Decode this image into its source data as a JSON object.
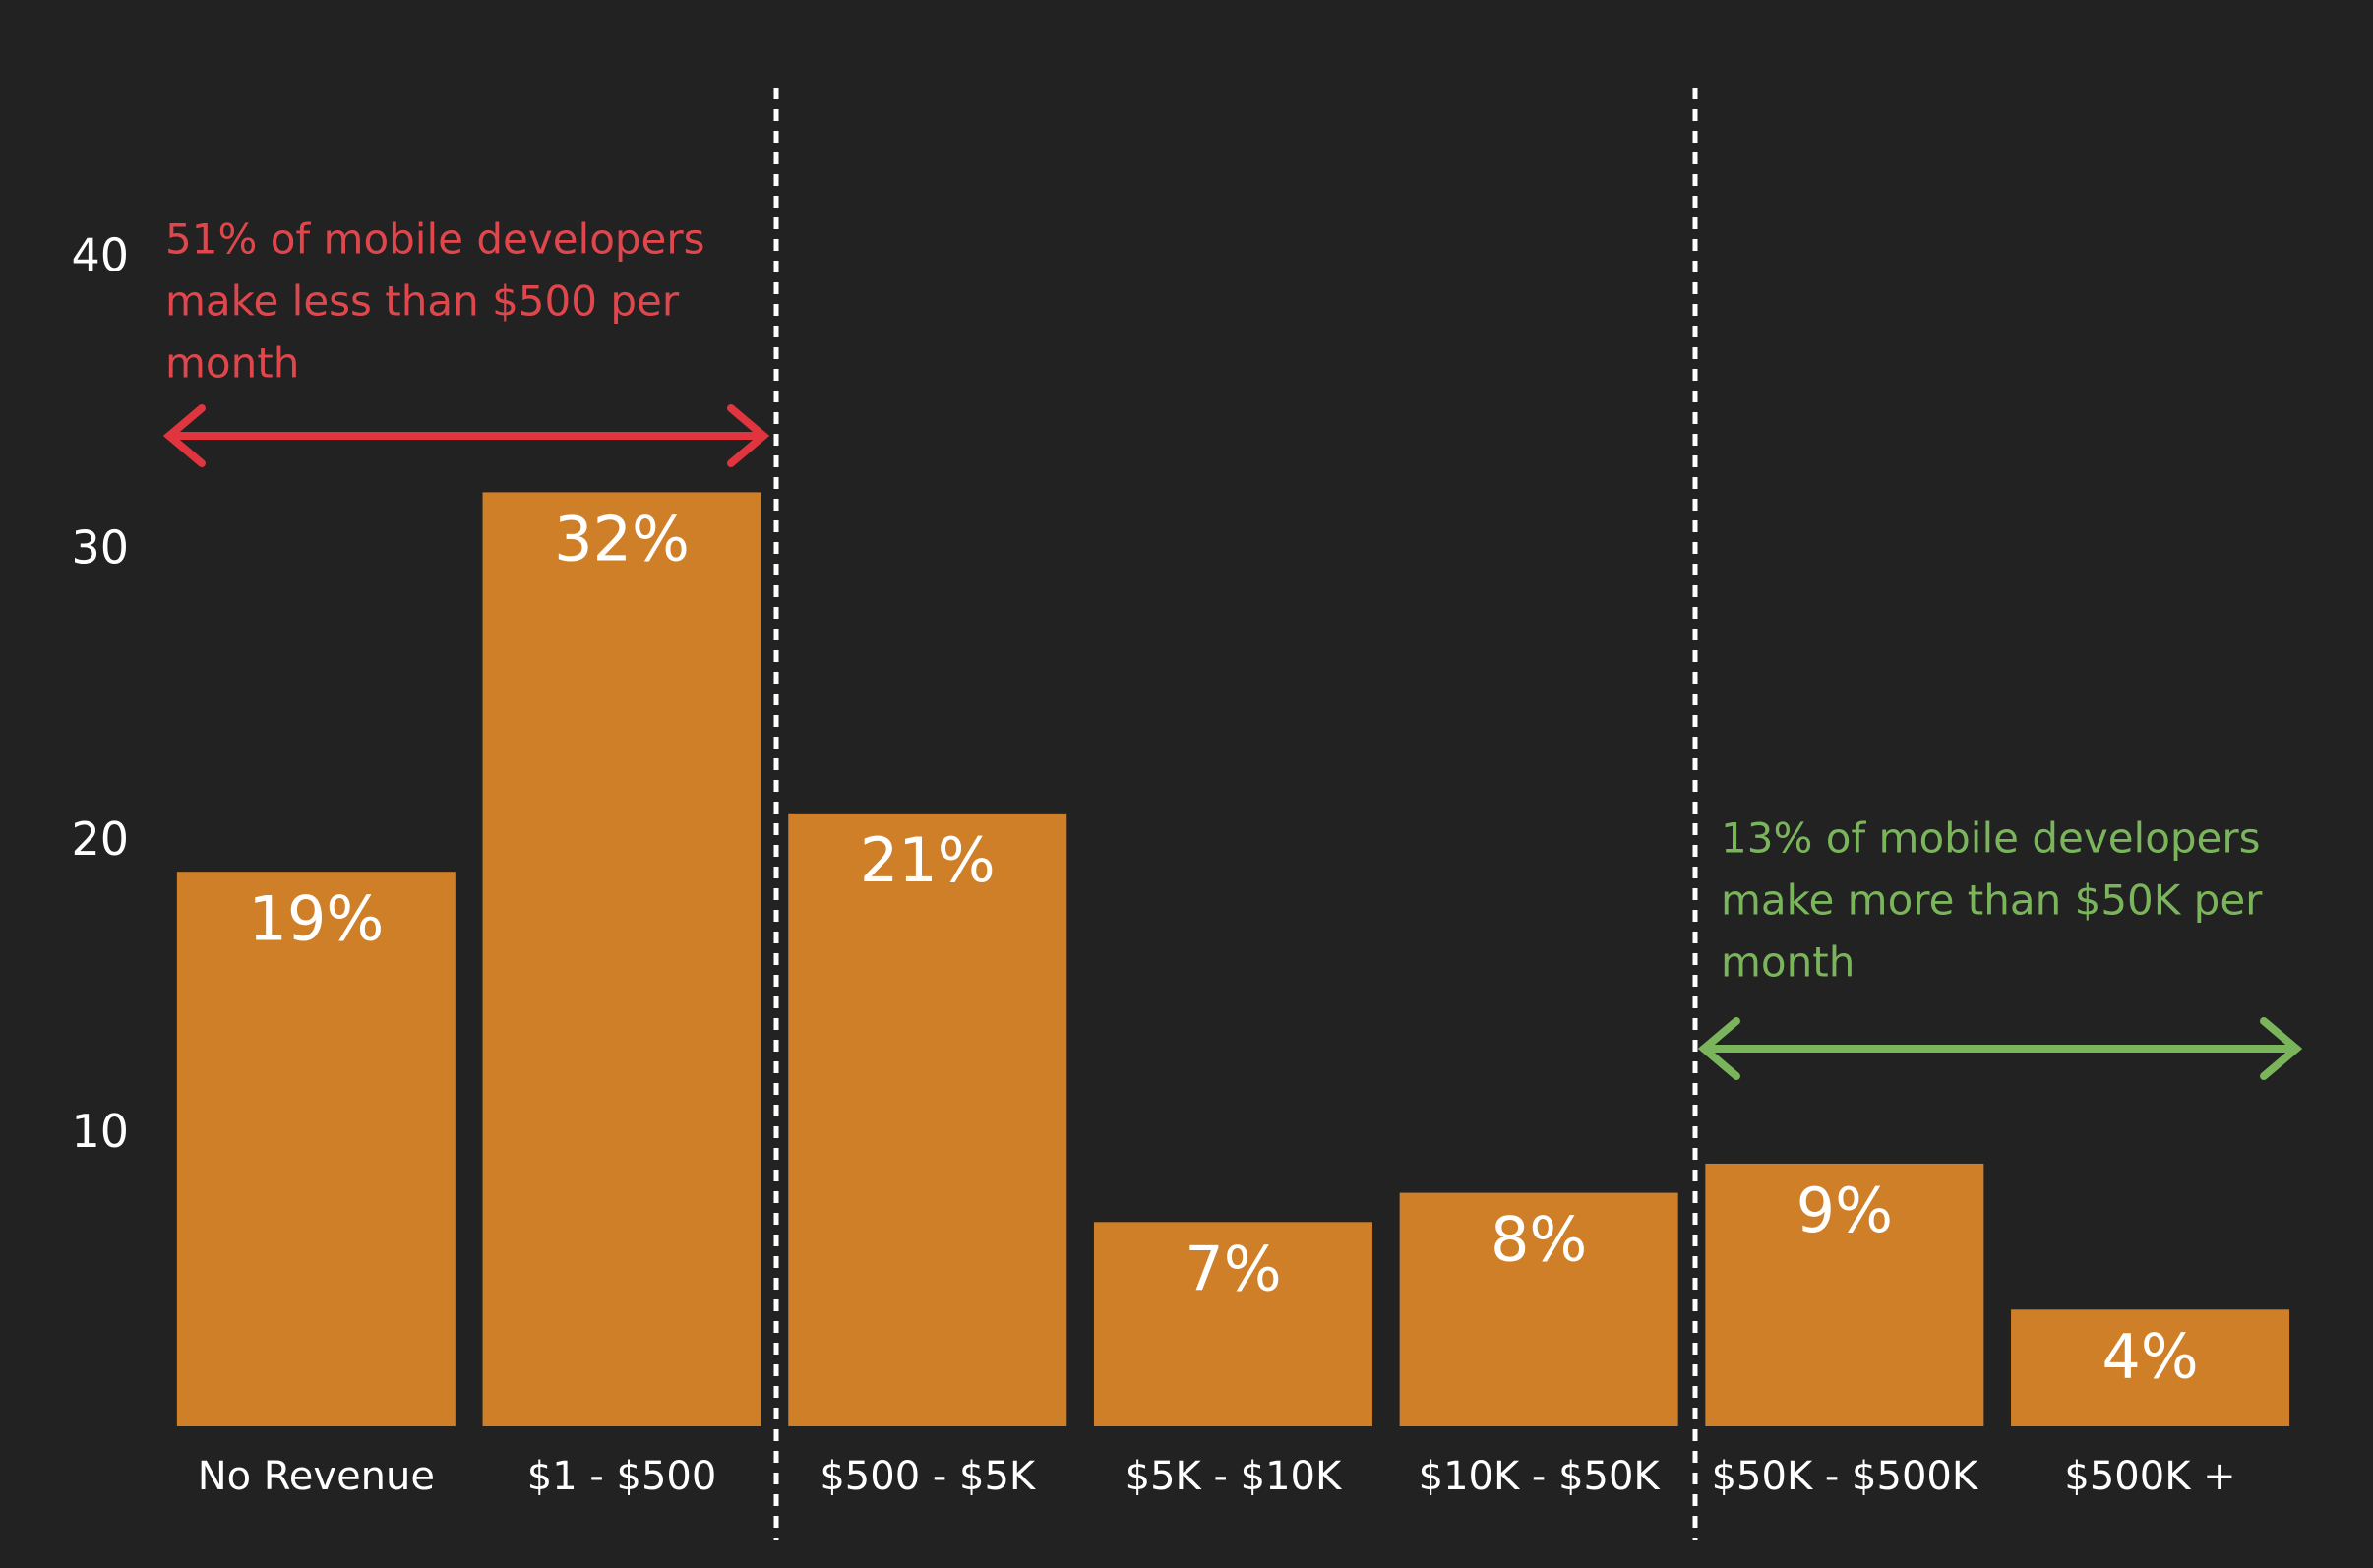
{
  "chart_data": {
    "type": "bar",
    "categories": [
      "No Revenue",
      "$1 - $500",
      "$500 - $5K",
      "$5K - $10K",
      "$10K - $50K",
      "$50K - $500K",
      "$500K +"
    ],
    "values": [
      19,
      32,
      21,
      7,
      8,
      9,
      4
    ],
    "value_labels": [
      "19%",
      "32%",
      "21%",
      "7%",
      "8%",
      "9%",
      "4%"
    ],
    "color": "#cf7f28",
    "ylim": [
      0,
      40
    ],
    "yticks": [
      10,
      20,
      30,
      40
    ],
    "grid": false,
    "annotations": [
      {
        "lines": [
          "51% of mobile developers",
          "make less than $500 per",
          "month"
        ],
        "color": "#e0474c"
      },
      {
        "lines": [
          "13% of mobile developers",
          "make more than $50K per",
          "month"
        ],
        "color": "#7ab55c"
      }
    ]
  }
}
